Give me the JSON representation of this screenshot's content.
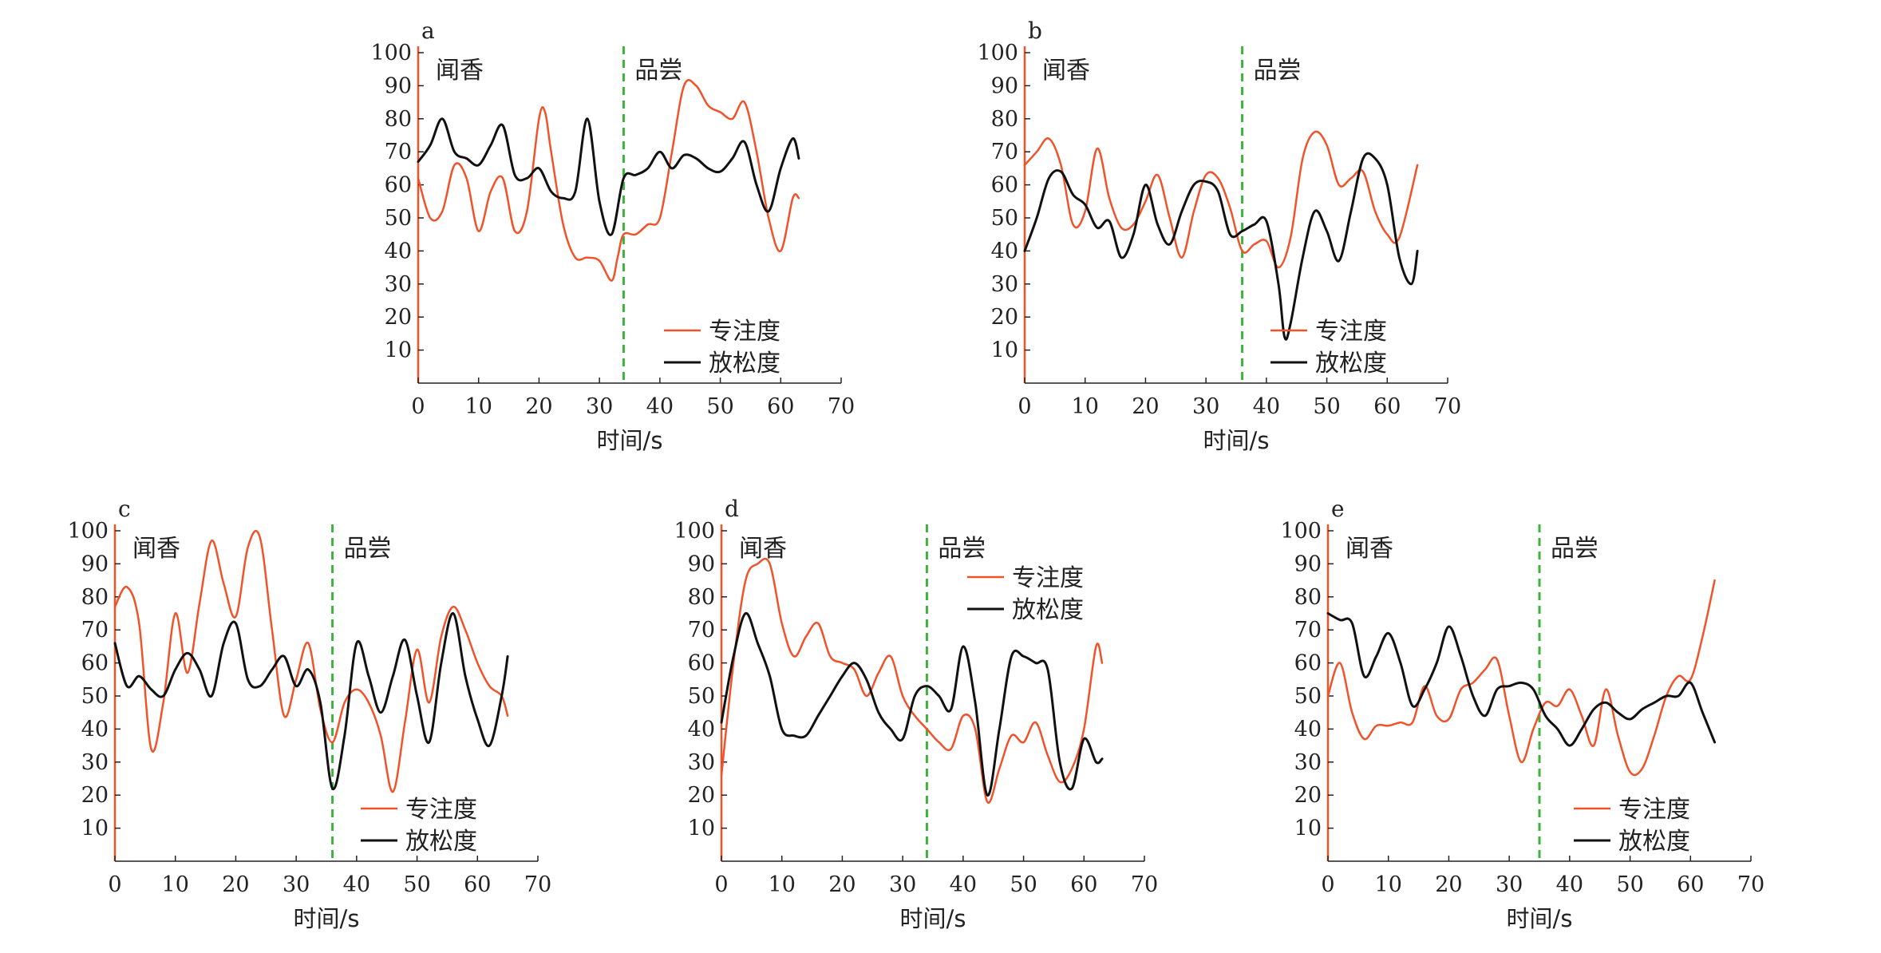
{
  "colors": {
    "focus": "#f0522a",
    "relax": "#111111",
    "divider": "#3cb43c",
    "axis": "#f0522a"
  },
  "chart_data": [
    {
      "id": "a",
      "type": "line",
      "panel_label": "a",
      "phase_labels": [
        "闻香",
        "品尝"
      ],
      "divider_x": 34,
      "xlabel": "时间/s",
      "ylabel": "",
      "xlim": [
        0,
        70
      ],
      "ylim": [
        0,
        100
      ],
      "xticks": [
        "0",
        "10",
        "20",
        "30",
        "40",
        "50",
        "60",
        "70"
      ],
      "yticks": [
        "10",
        "20",
        "30",
        "40",
        "50",
        "60",
        "70",
        "80",
        "90",
        "100"
      ],
      "legend_position": "bottom-right",
      "series": [
        {
          "name": "专注度",
          "color": "#f0522a",
          "x": [
            0,
            2,
            4,
            6,
            8,
            10,
            12,
            14,
            16,
            18,
            20,
            21,
            22,
            24,
            26,
            28,
            30,
            32,
            33,
            34,
            36,
            38,
            40,
            42,
            44,
            46,
            48,
            50,
            52,
            54,
            56,
            58,
            60,
            62,
            63
          ],
          "y": [
            62,
            50,
            52,
            66,
            62,
            46,
            58,
            62,
            46,
            52,
            80,
            82,
            70,
            48,
            38,
            38,
            37,
            31,
            38,
            45,
            45,
            48,
            50,
            70,
            90,
            90,
            84,
            82,
            80,
            85,
            70,
            50,
            40,
            56,
            56
          ]
        },
        {
          "name": "放松度",
          "color": "#111111",
          "x": [
            0,
            2,
            4,
            6,
            8,
            10,
            12,
            14,
            16,
            18,
            20,
            22,
            24,
            26,
            28,
            30,
            32,
            34,
            36,
            38,
            40,
            42,
            44,
            46,
            48,
            50,
            52,
            54,
            56,
            58,
            60,
            62,
            63
          ],
          "y": [
            67,
            72,
            80,
            70,
            68,
            66,
            72,
            78,
            63,
            62,
            65,
            58,
            56,
            58,
            80,
            55,
            45,
            62,
            63,
            65,
            70,
            65,
            69,
            68,
            65,
            64,
            68,
            73,
            60,
            52,
            65,
            74,
            68
          ]
        }
      ]
    },
    {
      "id": "b",
      "type": "line",
      "panel_label": "b",
      "phase_labels": [
        "闻香",
        "品尝"
      ],
      "divider_x": 36,
      "xlabel": "时间/s",
      "ylabel": "",
      "xlim": [
        0,
        70
      ],
      "ylim": [
        0,
        100
      ],
      "xticks": [
        "0",
        "10",
        "20",
        "30",
        "40",
        "50",
        "60",
        "70"
      ],
      "yticks": [
        "10",
        "20",
        "30",
        "40",
        "50",
        "60",
        "70",
        "80",
        "90",
        "100"
      ],
      "legend_position": "bottom-right",
      "series": [
        {
          "name": "专注度",
          "color": "#f0522a",
          "x": [
            0,
            2,
            4,
            6,
            8,
            10,
            12,
            14,
            16,
            18,
            20,
            22,
            24,
            26,
            28,
            30,
            32,
            34,
            36,
            38,
            40,
            42,
            44,
            46,
            48,
            50,
            52,
            54,
            56,
            58,
            60,
            62,
            65
          ],
          "y": [
            66,
            70,
            74,
            66,
            48,
            52,
            71,
            56,
            47,
            48,
            55,
            63,
            50,
            38,
            52,
            63,
            62,
            53,
            40,
            42,
            43,
            35,
            44,
            68,
            76,
            72,
            60,
            62,
            64,
            52,
            45,
            44,
            66
          ]
        },
        {
          "name": "放松度",
          "color": "#111111",
          "x": [
            0,
            2,
            4,
            6,
            8,
            10,
            12,
            14,
            16,
            18,
            20,
            22,
            24,
            26,
            28,
            30,
            32,
            34,
            36,
            38,
            40,
            42,
            43,
            44,
            46,
            48,
            50,
            52,
            54,
            56,
            58,
            60,
            62,
            64,
            65
          ],
          "y": [
            40,
            50,
            62,
            64,
            57,
            54,
            47,
            49,
            38,
            45,
            60,
            48,
            42,
            52,
            60,
            61,
            58,
            45,
            46,
            48,
            49,
            30,
            14,
            18,
            38,
            52,
            46,
            37,
            52,
            68,
            68,
            60,
            38,
            30,
            40
          ]
        }
      ]
    },
    {
      "id": "c",
      "type": "line",
      "panel_label": "c",
      "phase_labels": [
        "闻香",
        "品尝"
      ],
      "divider_x": 36,
      "xlabel": "时间/s",
      "ylabel": "",
      "xlim": [
        0,
        70
      ],
      "ylim": [
        0,
        100
      ],
      "xticks": [
        "0",
        "10",
        "20",
        "30",
        "40",
        "50",
        "60",
        "70"
      ],
      "yticks": [
        "10",
        "20",
        "30",
        "40",
        "50",
        "60",
        "70",
        "80",
        "90",
        "100"
      ],
      "legend_position": "bottom-right",
      "series": [
        {
          "name": "专注度",
          "color": "#f0522a",
          "x": [
            0,
            2,
            4,
            6,
            8,
            10,
            12,
            14,
            16,
            18,
            20,
            22,
            24,
            26,
            28,
            30,
            32,
            34,
            36,
            38,
            40,
            42,
            44,
            46,
            48,
            50,
            52,
            54,
            56,
            58,
            60,
            62,
            64,
            65
          ],
          "y": [
            77,
            83,
            72,
            34,
            48,
            75,
            57,
            78,
            97,
            84,
            74,
            95,
            98,
            70,
            44,
            55,
            66,
            46,
            36,
            48,
            52,
            48,
            38,
            21,
            42,
            64,
            48,
            68,
            77,
            70,
            60,
            53,
            50,
            44
          ]
        },
        {
          "name": "放松度",
          "color": "#111111",
          "x": [
            0,
            2,
            4,
            6,
            8,
            10,
            12,
            14,
            16,
            18,
            20,
            22,
            24,
            26,
            28,
            30,
            32,
            34,
            36,
            38,
            40,
            42,
            44,
            46,
            48,
            50,
            52,
            54,
            56,
            58,
            60,
            62,
            64,
            65
          ],
          "y": [
            66,
            53,
            56,
            52,
            50,
            58,
            63,
            58,
            50,
            66,
            72,
            55,
            53,
            58,
            62,
            53,
            58,
            48,
            22,
            38,
            66,
            56,
            45,
            56,
            67,
            50,
            36,
            60,
            75,
            56,
            43,
            35,
            50,
            62
          ]
        }
      ]
    },
    {
      "id": "d",
      "type": "line",
      "panel_label": "d",
      "phase_labels": [
        "闻香",
        "品尝"
      ],
      "divider_x": 34,
      "xlabel": "时间/s",
      "ylabel": "",
      "xlim": [
        0,
        70
      ],
      "ylim": [
        0,
        100
      ],
      "xticks": [
        "0",
        "10",
        "20",
        "30",
        "40",
        "50",
        "60",
        "70"
      ],
      "yticks": [
        "10",
        "20",
        "30",
        "40",
        "50",
        "60",
        "70",
        "80",
        "90",
        "100"
      ],
      "legend_position": "top-right",
      "series": [
        {
          "name": "专注度",
          "color": "#f0522a",
          "x": [
            0,
            2,
            4,
            6,
            8,
            10,
            12,
            14,
            16,
            18,
            20,
            22,
            24,
            26,
            28,
            30,
            32,
            34,
            36,
            38,
            40,
            42,
            44,
            46,
            48,
            50,
            52,
            54,
            56,
            58,
            60,
            62,
            63
          ],
          "y": [
            26,
            60,
            85,
            90,
            90,
            72,
            62,
            68,
            72,
            62,
            60,
            58,
            50,
            57,
            62,
            50,
            44,
            40,
            36,
            34,
            44,
            40,
            18,
            28,
            38,
            36,
            42,
            32,
            24,
            28,
            40,
            65,
            60
          ]
        },
        {
          "name": "放松度",
          "color": "#111111",
          "x": [
            0,
            2,
            4,
            6,
            8,
            10,
            12,
            14,
            16,
            18,
            20,
            22,
            24,
            26,
            28,
            30,
            32,
            34,
            36,
            38,
            40,
            42,
            44,
            46,
            48,
            50,
            52,
            54,
            56,
            58,
            60,
            62,
            63
          ],
          "y": [
            42,
            62,
            75,
            66,
            56,
            40,
            38,
            38,
            44,
            50,
            56,
            60,
            55,
            45,
            40,
            37,
            50,
            53,
            50,
            46,
            65,
            48,
            20,
            40,
            62,
            62,
            60,
            58,
            30,
            22,
            37,
            30,
            31
          ]
        }
      ]
    },
    {
      "id": "e",
      "type": "line",
      "panel_label": "e",
      "phase_labels": [
        "闻香",
        "品尝"
      ],
      "divider_x": 35,
      "xlabel": "时间/s",
      "ylabel": "",
      "xlim": [
        0,
        70
      ],
      "ylim": [
        0,
        100
      ],
      "xticks": [
        "0",
        "10",
        "20",
        "30",
        "40",
        "50",
        "60",
        "70"
      ],
      "yticks": [
        "10",
        "20",
        "30",
        "40",
        "50",
        "60",
        "70",
        "80",
        "90",
        "100"
      ],
      "legend_position": "bottom-right",
      "series": [
        {
          "name": "专注度",
          "color": "#f0522a",
          "x": [
            0,
            2,
            4,
            6,
            8,
            10,
            12,
            14,
            16,
            18,
            20,
            22,
            24,
            26,
            28,
            30,
            32,
            34,
            36,
            38,
            40,
            42,
            44,
            46,
            48,
            50,
            52,
            54,
            56,
            58,
            60,
            62,
            64
          ],
          "y": [
            50,
            60,
            45,
            37,
            41,
            41,
            42,
            42,
            53,
            44,
            43,
            52,
            54,
            58,
            61,
            44,
            30,
            40,
            48,
            47,
            52,
            44,
            35,
            52,
            38,
            27,
            28,
            38,
            50,
            56,
            55,
            68,
            85
          ]
        },
        {
          "name": "放松度",
          "color": "#111111",
          "x": [
            0,
            2,
            4,
            6,
            8,
            10,
            12,
            14,
            16,
            18,
            20,
            22,
            24,
            26,
            28,
            30,
            32,
            34,
            36,
            38,
            40,
            42,
            44,
            46,
            48,
            50,
            52,
            54,
            56,
            58,
            60,
            62,
            64
          ],
          "y": [
            75,
            73,
            72,
            56,
            62,
            69,
            60,
            47,
            52,
            60,
            71,
            62,
            50,
            44,
            52,
            53,
            54,
            52,
            44,
            40,
            35,
            40,
            46,
            48,
            45,
            43,
            46,
            48,
            50,
            50,
            54,
            45,
            36
          ]
        }
      ]
    }
  ]
}
